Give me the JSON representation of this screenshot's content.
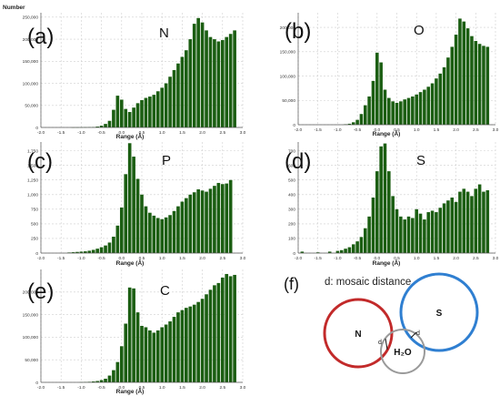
{
  "chart_data": [
    {
      "type": "bar",
      "panel_label": "(a)",
      "element": "N",
      "ylabel": "Number",
      "xlabel": "Range (Å)",
      "xlim": [
        -2.0,
        3.0
      ],
      "ylim": [
        0,
        260000
      ],
      "xticks": [
        "-2.0",
        "-1.5",
        "-1.0",
        "-0.5",
        "0.0",
        "0.5",
        "1.0",
        "1.5",
        "2.0",
        "2.5",
        "3.0"
      ],
      "yticks": [
        "0",
        "50,000",
        "100,000",
        "150,000",
        "200,000",
        "250,000"
      ],
      "bar_color": "#1b5e12",
      "x": [
        -1.2,
        -1.1,
        -1.0,
        -0.9,
        -0.8,
        -0.7,
        -0.6,
        -0.5,
        -0.4,
        -0.3,
        -0.2,
        -0.1,
        0.0,
        0.1,
        0.2,
        0.3,
        0.4,
        0.5,
        0.6,
        0.7,
        0.8,
        0.9,
        1.0,
        1.1,
        1.2,
        1.3,
        1.4,
        1.5,
        1.6,
        1.7,
        1.8,
        1.9,
        2.0,
        2.1,
        2.2,
        2.3,
        2.4,
        2.5,
        2.6,
        2.7,
        2.8
      ],
      "values": [
        200,
        300,
        400,
        600,
        800,
        1000,
        2000,
        4000,
        8000,
        15000,
        40000,
        72000,
        63000,
        42000,
        35000,
        45000,
        55000,
        62000,
        67000,
        70000,
        74000,
        82000,
        90000,
        100000,
        115000,
        130000,
        145000,
        160000,
        175000,
        200000,
        235000,
        248000,
        238000,
        220000,
        205000,
        200000,
        195000,
        198000,
        205000,
        212000,
        220000
      ]
    },
    {
      "type": "bar",
      "panel_label": "(b)",
      "element": "O",
      "xlabel": "Range (Å)",
      "xlim": [
        -2.0,
        3.0
      ],
      "ylim": [
        0,
        230000
      ],
      "xticks": [
        "-2.0",
        "-1.5",
        "-1.0",
        "-0.5",
        "0.0",
        "0.5",
        "1.0",
        "1.5",
        "2.0",
        "2.5",
        "3.0"
      ],
      "yticks": [
        "0",
        "50,000",
        "100,000",
        "150,000",
        "200,000"
      ],
      "bar_color": "#1b5e12",
      "x": [
        -0.8,
        -0.7,
        -0.6,
        -0.5,
        -0.4,
        -0.3,
        -0.2,
        -0.1,
        0.0,
        0.1,
        0.2,
        0.3,
        0.4,
        0.5,
        0.6,
        0.7,
        0.8,
        0.9,
        1.0,
        1.1,
        1.2,
        1.3,
        1.4,
        1.5,
        1.6,
        1.7,
        1.8,
        1.9,
        2.0,
        2.1,
        2.2,
        2.3,
        2.4,
        2.5,
        2.6,
        2.7,
        2.8
      ],
      "values": [
        1000,
        2000,
        5000,
        10000,
        22000,
        40000,
        58000,
        90000,
        148000,
        128000,
        72000,
        55000,
        48000,
        45000,
        48000,
        52000,
        55000,
        58000,
        62000,
        67000,
        72000,
        78000,
        85000,
        95000,
        105000,
        118000,
        138000,
        160000,
        185000,
        218000,
        212000,
        198000,
        182000,
        172000,
        166000,
        162000,
        160000
      ]
    },
    {
      "type": "bar",
      "panel_label": "(c)",
      "element": "P",
      "xlabel": "Range (Å)",
      "xlim": [
        -2.0,
        3.0
      ],
      "ylim": [
        0,
        1900
      ],
      "xticks": [
        "-2.0",
        "-1.5",
        "-1.0",
        "-0.5",
        "0.0",
        "0.5",
        "1.0",
        "1.5",
        "2.0",
        "2.5",
        "3.0"
      ],
      "yticks": [
        "0",
        "250",
        "500",
        "750",
        "1,000",
        "1,250",
        "1,500",
        "1,750"
      ],
      "bar_color": "#1b5e12",
      "x": [
        -1.3,
        -1.2,
        -1.1,
        -1.0,
        -0.9,
        -0.8,
        -0.7,
        -0.6,
        -0.5,
        -0.4,
        -0.3,
        -0.2,
        -0.1,
        0.0,
        0.1,
        0.2,
        0.3,
        0.4,
        0.5,
        0.6,
        0.7,
        0.8,
        0.9,
        1.0,
        1.1,
        1.2,
        1.3,
        1.4,
        1.5,
        1.6,
        1.7,
        1.8,
        1.9,
        2.0,
        2.1,
        2.2,
        2.3,
        2.4,
        2.5,
        2.6,
        2.7
      ],
      "values": [
        10,
        15,
        20,
        25,
        30,
        40,
        55,
        75,
        100,
        130,
        180,
        280,
        470,
        780,
        1350,
        1880,
        1650,
        1270,
        1000,
        800,
        690,
        640,
        600,
        580,
        610,
        650,
        720,
        800,
        880,
        940,
        1000,
        1040,
        1090,
        1070,
        1050,
        1100,
        1150,
        1200,
        1180,
        1190,
        1250
      ]
    },
    {
      "type": "bar",
      "panel_label": "(d)",
      "element": "S",
      "xlabel": "Range (Å)",
      "xlim": [
        -2.0,
        3.0
      ],
      "ylim": [
        0,
        760
      ],
      "xticks": [
        "-2.0",
        "-1.5",
        "-1.0",
        "-0.5",
        "0.0",
        "0.5",
        "1.0",
        "1.5",
        "2.0",
        "2.5",
        "3.0"
      ],
      "yticks": [
        "0",
        "100",
        "200",
        "300",
        "400",
        "500",
        "600",
        "700"
      ],
      "bar_color": "#1b5e12",
      "x": [
        -1.9,
        -1.5,
        -1.2,
        -1.0,
        -0.9,
        -0.8,
        -0.7,
        -0.6,
        -0.5,
        -0.4,
        -0.3,
        -0.2,
        -0.1,
        0.0,
        0.1,
        0.2,
        0.3,
        0.4,
        0.5,
        0.6,
        0.7,
        0.8,
        0.9,
        1.0,
        1.1,
        1.2,
        1.3,
        1.4,
        1.5,
        1.6,
        1.7,
        1.8,
        1.9,
        2.0,
        2.1,
        2.2,
        2.3,
        2.4,
        2.5,
        2.6,
        2.7,
        2.8
      ],
      "values": [
        10,
        5,
        10,
        15,
        20,
        30,
        40,
        60,
        80,
        110,
        170,
        250,
        380,
        560,
        730,
        750,
        560,
        390,
        300,
        250,
        230,
        250,
        240,
        300,
        270,
        230,
        280,
        290,
        280,
        310,
        340,
        360,
        380,
        350,
        420,
        440,
        420,
        390,
        440,
        470,
        420,
        430
      ]
    },
    {
      "type": "bar",
      "panel_label": "(e)",
      "element": "C",
      "xlabel": "Range (Å)",
      "xlim": [
        -2.0,
        3.0
      ],
      "ylim": [
        0,
        250000
      ],
      "xticks": [
        "-2.0",
        "-1.5",
        "-1.0",
        "-0.5",
        "0.0",
        "0.5",
        "1.0",
        "1.5",
        "2.0",
        "2.5",
        "3.0"
      ],
      "yticks": [
        "0",
        "50,000",
        "100,000",
        "150,000",
        "200,000"
      ],
      "bar_color": "#1b5e12",
      "x": [
        -1.0,
        -0.9,
        -0.8,
        -0.7,
        -0.6,
        -0.5,
        -0.4,
        -0.3,
        -0.2,
        -0.1,
        0.0,
        0.1,
        0.2,
        0.3,
        0.4,
        0.5,
        0.6,
        0.7,
        0.8,
        0.9,
        1.0,
        1.1,
        1.2,
        1.3,
        1.4,
        1.5,
        1.6,
        1.7,
        1.8,
        1.9,
        2.0,
        2.1,
        2.2,
        2.3,
        2.4,
        2.5,
        2.6,
        2.7,
        2.8
      ],
      "values": [
        500,
        800,
        1200,
        2000,
        3000,
        5000,
        8000,
        15000,
        27000,
        45000,
        80000,
        130000,
        210000,
        208000,
        155000,
        125000,
        122000,
        115000,
        110000,
        115000,
        122000,
        128000,
        135000,
        145000,
        155000,
        160000,
        165000,
        168000,
        172000,
        178000,
        185000,
        195000,
        205000,
        215000,
        220000,
        232000,
        240000,
        235000,
        238000
      ]
    }
  ],
  "diagram": {
    "panel_label": "(f)",
    "caption": "d: mosaic distance",
    "circles": [
      {
        "label": "N",
        "color": "#c22a2a"
      },
      {
        "label": "S",
        "color": "#2f7fd1"
      },
      {
        "label": "H₂O",
        "color": "#9a9a9a"
      }
    ],
    "distance_labels": [
      "d",
      "d"
    ]
  }
}
